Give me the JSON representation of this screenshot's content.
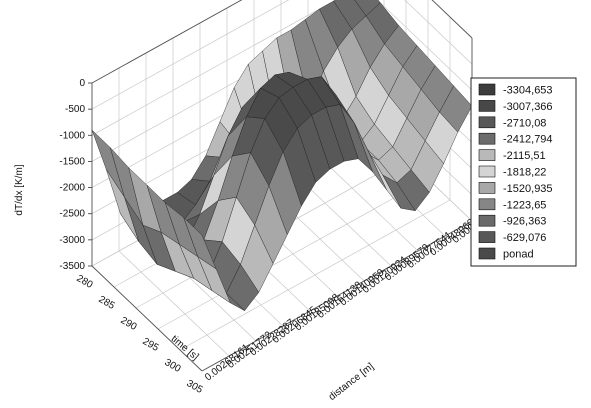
{
  "chart_data": {
    "type": "surface3d",
    "zlabel": "dT/dx [K/m]",
    "time_label": "time [s]",
    "distance_label": "distance [m]",
    "z_ticks": [
      "0",
      "-500",
      "-1000",
      "-1500",
      "-2000",
      "-2500",
      "-3000",
      "-3500"
    ],
    "time_ticks": [
      "280",
      "285",
      "290",
      "295",
      "300",
      "305"
    ],
    "distance_ticks": [
      "0.00016166",
      "0.00032565",
      "0.00048960",
      "0.00077541",
      "0.00089579",
      "0.00120924",
      "0.00140959",
      "0.00164138",
      "0.00185098",
      "0.00206845",
      "0.00228287",
      "0.00251772",
      "0.00268161"
    ],
    "legend": [
      {
        "label": "-3304,653",
        "color": "#3c3c3c"
      },
      {
        "label": "-3007,366",
        "color": "#484848"
      },
      {
        "label": "-2710,08",
        "color": "#585858"
      },
      {
        "label": "-2412,794",
        "color": "#6c6c6c"
      },
      {
        "label": "-2115,51",
        "color": "#b9b9b9"
      },
      {
        "label": "-1818,22",
        "color": "#d4d4d4"
      },
      {
        "label": "-1520,935",
        "color": "#a8a8a8"
      },
      {
        "label": "-1223,65",
        "color": "#868686"
      },
      {
        "label": "-926,363",
        "color": "#6a6a6a"
      },
      {
        "label": "-629,076",
        "color": "#585858"
      },
      {
        "label": "ponad",
        "color": "#4a4a4a"
      }
    ],
    "zlim": [
      -3500,
      0
    ],
    "timelim": [
      280,
      305
    ],
    "surface_rows": [
      [
        -900,
        -950,
        -1000,
        -1000,
        -1050,
        -1100,
        -1100,
        -1200,
        -1300,
        -1600,
        -2100,
        -2600,
        -2900,
        -3000,
        -3000,
        -3100,
        -3100,
        -2800,
        -1800,
        -900
      ],
      [
        -1000,
        -1100,
        -1200,
        -1400,
        -1700,
        -2200,
        -2500,
        -2600,
        -2500,
        -2300,
        -2200,
        -2300,
        -2600,
        -2900,
        -3100,
        -3200,
        -3300,
        -3000,
        -2000,
        -900
      ],
      [
        -1100,
        -1300,
        -1600,
        -2000,
        -2300,
        -2500,
        -2600,
        -2400,
        -1800,
        -1200,
        -900,
        -1000,
        -1400,
        -2000,
        -2600,
        -3000,
        -3300,
        -3100,
        -2200,
        -950
      ],
      [
        -1150,
        -1400,
        -1800,
        -2200,
        -2400,
        -2300,
        -1900,
        -1200,
        -600,
        -300,
        -200,
        -300,
        -700,
        -1300,
        -2000,
        -2600,
        -3000,
        -2900,
        -2000,
        -950
      ],
      [
        -1200,
        -1500,
        -1900,
        -2300,
        -2400,
        -2100,
        -1500,
        -700,
        -200,
        -100,
        -100,
        -150,
        -400,
        -900,
        -1600,
        -2300,
        -2800,
        -2700,
        -1900,
        -950
      ],
      [
        -1250,
        -1600,
        -2000,
        -2400,
        -2500,
        -2200,
        -1600,
        -900,
        -400,
        -300,
        -300,
        -400,
        -700,
        -1200,
        -1800,
        -2400,
        -2800,
        -2600,
        -1800,
        -900
      ],
      [
        -1300,
        -1650,
        -2100,
        -2500,
        -2700,
        -2500,
        -2000,
        -1500,
        -1100,
        -1000,
        -1000,
        -1100,
        -1400,
        -1800,
        -2200,
        -2600,
        -2800,
        -2500,
        -1700,
        -900
      ]
    ]
  }
}
